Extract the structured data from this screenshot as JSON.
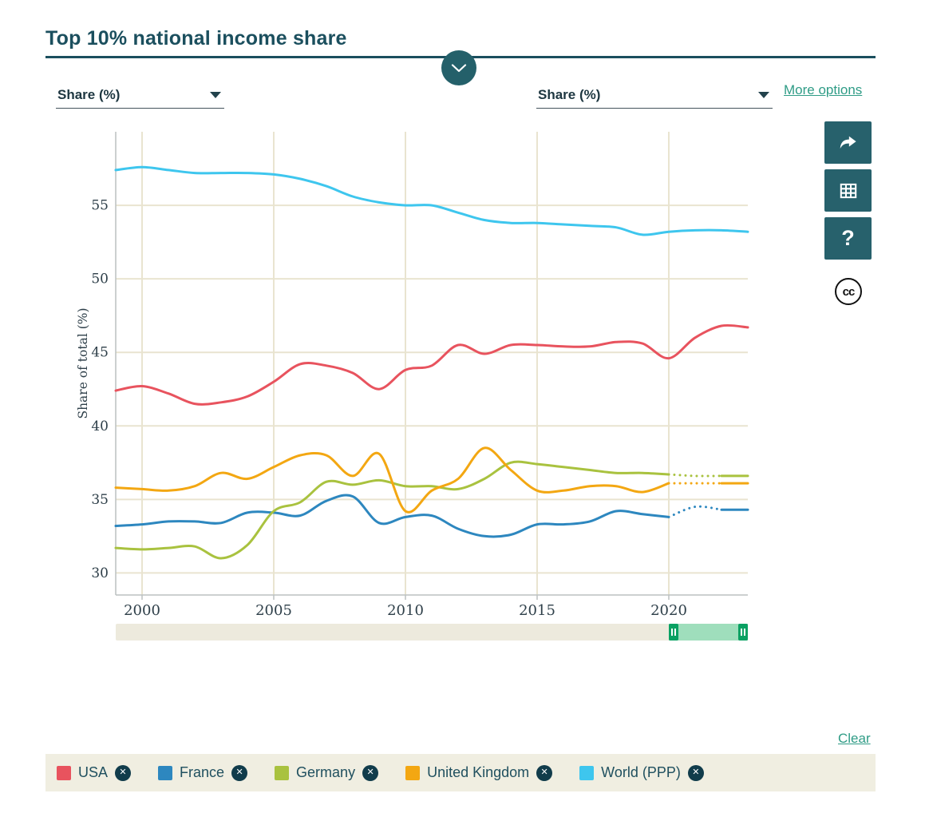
{
  "header": {
    "title": "Top 10% national income share"
  },
  "controls": {
    "left_select_value": "Share (%)",
    "right_select_value": "Share (%)",
    "more_options_label": "More options"
  },
  "toolbar": {
    "share_icon": "forward-arrow-icon",
    "table_icon": "data-table-icon",
    "help_label": "?",
    "cc_label": "cc"
  },
  "legend": {
    "clear_label": "Clear",
    "remove_glyph": "✕",
    "items": [
      {
        "label": "USA",
        "color": "#e8535e"
      },
      {
        "label": "France",
        "color": "#2d87bf"
      },
      {
        "label": "Germany",
        "color": "#a9c23f"
      },
      {
        "label": "United Kingdom",
        "color": "#f3a712"
      },
      {
        "label": "World (PPP)",
        "color": "#3ec6ee"
      }
    ]
  },
  "colors": {
    "accent_teal": "#24606a",
    "header_teal": "#1b4f5e",
    "link_green": "#2f9c86",
    "slider_track": "#edeadd",
    "slider_selection": "#9fdebc",
    "slider_handle": "#0aa163",
    "legend_background": "#f0eee1"
  },
  "chart_data": {
    "type": "line",
    "title": "Top 10% national income share",
    "xlabel": "",
    "ylabel": "Share of total (%)",
    "xlim": [
      1999,
      2023
    ],
    "ylim": [
      28.5,
      60
    ],
    "x_ticks": [
      2000,
      2005,
      2010,
      2015,
      2020
    ],
    "y_ticks": [
      30,
      35,
      40,
      45,
      50,
      55
    ],
    "grid": true,
    "grid_color": "#e9e4d0",
    "legend_position": "bottom",
    "x": [
      1999,
      2000,
      2001,
      2002,
      2003,
      2004,
      2005,
      2006,
      2007,
      2008,
      2009,
      2010,
      2011,
      2012,
      2013,
      2014,
      2015,
      2016,
      2017,
      2018,
      2019,
      2020,
      2021,
      2022,
      2023
    ],
    "series": [
      {
        "name": "USA",
        "color": "#e8535e",
        "dashed_range": null,
        "values": [
          42.4,
          42.7,
          42.2,
          41.5,
          41.6,
          42.0,
          43.0,
          44.2,
          44.1,
          43.6,
          42.5,
          43.8,
          44.1,
          45.5,
          44.9,
          45.5,
          45.5,
          45.4,
          45.4,
          45.7,
          45.6,
          44.6,
          46.0,
          46.8,
          46.7
        ]
      },
      {
        "name": "France",
        "color": "#2d87bf",
        "dashed_range": [
          2020,
          2022
        ],
        "values": [
          33.2,
          33.3,
          33.5,
          33.5,
          33.4,
          34.1,
          34.1,
          33.9,
          34.9,
          35.2,
          33.4,
          33.8,
          33.9,
          33.0,
          32.5,
          32.6,
          33.3,
          33.3,
          33.5,
          34.2,
          34.0,
          33.8,
          34.5,
          34.3,
          34.3
        ]
      },
      {
        "name": "Germany",
        "color": "#a9c23f",
        "dashed_range": [
          2020,
          2022
        ],
        "values": [
          31.7,
          31.6,
          31.7,
          31.8,
          31.0,
          31.9,
          34.2,
          34.8,
          36.2,
          36.0,
          36.3,
          35.9,
          35.9,
          35.7,
          36.4,
          37.5,
          37.4,
          37.2,
          37.0,
          36.8,
          36.8,
          36.7,
          36.6,
          36.6,
          36.6
        ]
      },
      {
        "name": "United Kingdom",
        "color": "#f3a712",
        "dashed_range": [
          2020,
          2022
        ],
        "values": [
          35.8,
          35.7,
          35.6,
          35.9,
          36.8,
          36.4,
          37.2,
          38.0,
          38.0,
          36.6,
          38.1,
          34.2,
          35.6,
          36.4,
          38.5,
          37.0,
          35.6,
          35.6,
          35.9,
          35.9,
          35.5,
          36.1,
          36.1,
          36.1,
          36.1
        ]
      },
      {
        "name": "World (PPP)",
        "color": "#3ec6ee",
        "dashed_range": null,
        "values": [
          57.4,
          57.6,
          57.4,
          57.2,
          57.2,
          57.2,
          57.1,
          56.8,
          56.3,
          55.6,
          55.2,
          55.0,
          55.0,
          54.5,
          54.0,
          53.8,
          53.8,
          53.7,
          53.6,
          53.5,
          53.0,
          53.2,
          53.3,
          53.3,
          53.2
        ]
      }
    ],
    "time_slider": {
      "range": [
        1999,
        2023
      ],
      "selected": [
        2020,
        2023
      ]
    }
  }
}
